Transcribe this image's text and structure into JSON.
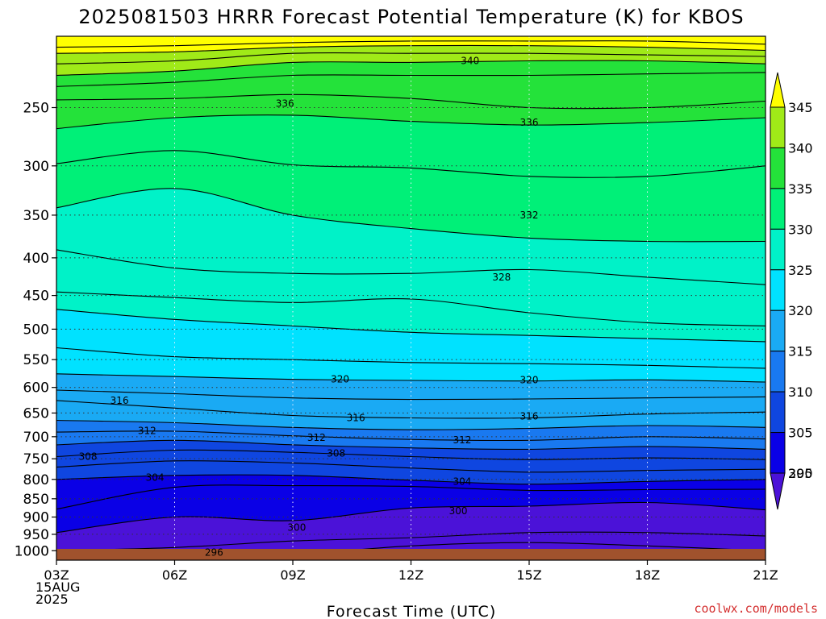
{
  "chart_data": {
    "type": "contour",
    "title": "2025081503 HRRR Forecast Potential Temperature (K) for KBOS",
    "xlabel": "Forecast Time (UTC)",
    "ylabel": "",
    "credit": "coolwx.com/models",
    "x_ticks": [
      {
        "hour": 0,
        "lines": [
          "03Z",
          "15AUG",
          "2025"
        ]
      },
      {
        "hour": 3,
        "lines": [
          "06Z"
        ]
      },
      {
        "hour": 6,
        "lines": [
          "09Z"
        ]
      },
      {
        "hour": 9,
        "lines": [
          "12Z"
        ]
      },
      {
        "hour": 12,
        "lines": [
          "15Z"
        ]
      },
      {
        "hour": 15,
        "lines": [
          "18Z"
        ]
      },
      {
        "hour": 18,
        "lines": [
          "21Z"
        ]
      }
    ],
    "xlim": [
      0,
      18
    ],
    "y_scale": "log-pressure",
    "y_ticks_hpa": [
      250,
      300,
      350,
      400,
      450,
      500,
      550,
      600,
      650,
      700,
      750,
      800,
      850,
      900,
      950,
      1000
    ],
    "ylim_hpa": [
      1030,
      200
    ],
    "colorbar": {
      "levels": [
        295,
        300,
        305,
        310,
        315,
        320,
        325,
        330,
        335,
        340,
        345
      ],
      "colors": [
        "#4b12d8",
        "#0a00e6",
        "#0f46e0",
        "#1979f0",
        "#1aaaf4",
        "#00e2ff",
        "#00f2c8",
        "#00f078",
        "#24e23a",
        "#a0ea18",
        "#ffff00"
      ],
      "extend": "both"
    },
    "contour_interval_K": 2,
    "contour_labels": [
      {
        "value": 340,
        "hour": 10.5,
        "hpa": 216
      },
      {
        "value": 336,
        "hour": 5.8,
        "hpa": 247
      },
      {
        "value": 336,
        "hour": 12.0,
        "hpa": 262
      },
      {
        "value": 332,
        "hour": 12.0,
        "hpa": 350
      },
      {
        "value": 328,
        "hour": 11.3,
        "hpa": 425
      },
      {
        "value": 320,
        "hour": 7.2,
        "hpa": 585
      },
      {
        "value": 320,
        "hour": 12.0,
        "hpa": 586
      },
      {
        "value": 316,
        "hour": 1.6,
        "hpa": 625
      },
      {
        "value": 316,
        "hour": 7.6,
        "hpa": 660
      },
      {
        "value": 316,
        "hour": 12.0,
        "hpa": 657
      },
      {
        "value": 312,
        "hour": 2.3,
        "hpa": 687
      },
      {
        "value": 312,
        "hour": 6.6,
        "hpa": 702
      },
      {
        "value": 312,
        "hour": 10.3,
        "hpa": 707
      },
      {
        "value": 308,
        "hour": 0.8,
        "hpa": 745
      },
      {
        "value": 308,
        "hour": 7.1,
        "hpa": 737
      },
      {
        "value": 304,
        "hour": 2.5,
        "hpa": 795
      },
      {
        "value": 304,
        "hour": 10.3,
        "hpa": 805
      },
      {
        "value": 300,
        "hour": 10.2,
        "hpa": 883
      },
      {
        "value": 300,
        "hour": 6.1,
        "hpa": 930
      },
      {
        "value": 296,
        "hour": 4.0,
        "hpa": 1005
      }
    ],
    "contours": [
      {
        "value": 346,
        "points": [
          [
            0,
            207
          ],
          [
            3,
            206
          ],
          [
            6,
            204
          ],
          [
            9,
            203
          ],
          [
            12,
            203
          ],
          [
            15,
            203
          ],
          [
            18,
            205
          ]
        ]
      },
      {
        "value": 344,
        "points": [
          [
            0,
            211
          ],
          [
            3,
            210
          ],
          [
            6,
            207
          ],
          [
            9,
            206
          ],
          [
            12,
            206
          ],
          [
            15,
            207
          ],
          [
            18,
            209
          ]
        ]
      },
      {
        "value": 342,
        "points": [
          [
            0,
            218
          ],
          [
            3,
            216
          ],
          [
            6,
            211
          ],
          [
            9,
            211
          ],
          [
            12,
            211
          ],
          [
            15,
            212
          ],
          [
            18,
            213
          ]
        ]
      },
      {
        "value": 340,
        "points": [
          [
            0,
            226
          ],
          [
            3,
            223
          ],
          [
            6,
            217
          ],
          [
            9,
            217
          ],
          [
            12,
            216
          ],
          [
            15,
            216
          ],
          [
            18,
            218
          ]
        ]
      },
      {
        "value": 338,
        "points": [
          [
            0,
            234
          ],
          [
            3,
            231
          ],
          [
            6,
            226
          ],
          [
            9,
            226
          ],
          [
            12,
            226
          ],
          [
            15,
            225
          ],
          [
            18,
            224
          ]
        ]
      },
      {
        "value": 336,
        "points": [
          [
            0,
            244
          ],
          [
            3,
            243
          ],
          [
            6,
            240
          ],
          [
            9,
            243
          ],
          [
            12,
            250
          ],
          [
            15,
            250
          ],
          [
            18,
            245
          ]
        ]
      },
      {
        "value": 334,
        "points": [
          [
            0,
            267
          ],
          [
            3,
            258
          ],
          [
            6,
            256
          ],
          [
            9,
            261
          ],
          [
            12,
            264
          ],
          [
            15,
            262
          ],
          [
            18,
            258
          ]
        ]
      },
      {
        "value": 332,
        "points": [
          [
            0,
            298
          ],
          [
            3,
            286
          ],
          [
            6,
            299
          ],
          [
            9,
            302
          ],
          [
            12,
            310
          ],
          [
            15,
            310
          ],
          [
            18,
            300
          ]
        ]
      },
      {
        "value": 330,
        "points": [
          [
            0,
            342
          ],
          [
            3,
            322
          ],
          [
            6,
            350
          ],
          [
            9,
            365
          ],
          [
            12,
            376
          ],
          [
            15,
            380
          ],
          [
            18,
            380
          ]
        ]
      },
      {
        "value": 328,
        "points": [
          [
            0,
            390
          ],
          [
            3,
            413
          ],
          [
            6,
            420
          ],
          [
            9,
            420
          ],
          [
            12,
            415
          ],
          [
            15,
            425
          ],
          [
            18,
            435
          ]
        ]
      },
      {
        "value": 326,
        "points": [
          [
            0,
            445
          ],
          [
            3,
            453
          ],
          [
            6,
            460
          ],
          [
            9,
            455
          ],
          [
            12,
            475
          ],
          [
            15,
            490
          ],
          [
            18,
            495
          ]
        ]
      },
      {
        "value": 324,
        "points": [
          [
            0,
            470
          ],
          [
            3,
            485
          ],
          [
            6,
            495
          ],
          [
            9,
            505
          ],
          [
            12,
            510
          ],
          [
            15,
            515
          ],
          [
            18,
            520
          ]
        ]
      },
      {
        "value": 322,
        "points": [
          [
            0,
            530
          ],
          [
            3,
            545
          ],
          [
            6,
            550
          ],
          [
            9,
            555
          ],
          [
            12,
            557
          ],
          [
            15,
            560
          ],
          [
            18,
            565
          ]
        ]
      },
      {
        "value": 320,
        "points": [
          [
            0,
            575
          ],
          [
            3,
            580
          ],
          [
            6,
            585
          ],
          [
            9,
            587
          ],
          [
            12,
            588
          ],
          [
            15,
            586
          ],
          [
            18,
            590
          ]
        ]
      },
      {
        "value": 318,
        "points": [
          [
            0,
            605
          ],
          [
            3,
            612
          ],
          [
            6,
            620
          ],
          [
            9,
            623
          ],
          [
            12,
            622
          ],
          [
            15,
            620
          ],
          [
            18,
            618
          ]
        ]
      },
      {
        "value": 316,
        "points": [
          [
            0,
            625
          ],
          [
            3,
            640
          ],
          [
            6,
            655
          ],
          [
            9,
            660
          ],
          [
            12,
            660
          ],
          [
            15,
            652
          ],
          [
            18,
            648
          ]
        ]
      },
      {
        "value": 314,
        "points": [
          [
            0,
            665
          ],
          [
            3,
            670
          ],
          [
            6,
            680
          ],
          [
            9,
            685
          ],
          [
            12,
            682
          ],
          [
            15,
            676
          ],
          [
            18,
            680
          ]
        ]
      },
      {
        "value": 312,
        "points": [
          [
            0,
            690
          ],
          [
            3,
            688
          ],
          [
            6,
            698
          ],
          [
            9,
            706
          ],
          [
            12,
            708
          ],
          [
            15,
            700
          ],
          [
            18,
            705
          ]
        ]
      },
      {
        "value": 310,
        "points": [
          [
            0,
            718
          ],
          [
            3,
            708
          ],
          [
            6,
            718
          ],
          [
            9,
            725
          ],
          [
            12,
            728
          ],
          [
            15,
            722
          ],
          [
            18,
            728
          ]
        ]
      },
      {
        "value": 308,
        "points": [
          [
            0,
            745
          ],
          [
            3,
            730
          ],
          [
            6,
            735
          ],
          [
            9,
            745
          ],
          [
            12,
            752
          ],
          [
            15,
            748
          ],
          [
            18,
            752
          ]
        ]
      },
      {
        "value": 306,
        "points": [
          [
            0,
            770
          ],
          [
            3,
            755
          ],
          [
            6,
            760
          ],
          [
            9,
            772
          ],
          [
            12,
            782
          ],
          [
            15,
            778
          ],
          [
            18,
            775
          ]
        ]
      },
      {
        "value": 304,
        "points": [
          [
            0,
            800
          ],
          [
            3,
            790
          ],
          [
            6,
            790
          ],
          [
            9,
            802
          ],
          [
            12,
            812
          ],
          [
            15,
            805
          ],
          [
            18,
            800
          ]
        ]
      },
      {
        "value": 302,
        "points": [
          [
            0,
            878
          ],
          [
            3,
            820
          ],
          [
            6,
            816
          ],
          [
            9,
            818
          ],
          [
            12,
            828
          ],
          [
            15,
            826
          ],
          [
            18,
            825
          ]
        ]
      },
      {
        "value": 300,
        "points": [
          [
            0,
            945
          ],
          [
            3,
            900
          ],
          [
            6,
            910
          ],
          [
            9,
            875
          ],
          [
            12,
            870
          ],
          [
            15,
            860
          ],
          [
            18,
            880
          ]
        ]
      },
      {
        "value": 298,
        "points": [
          [
            0,
            1000
          ],
          [
            3,
            990
          ],
          [
            6,
            970
          ],
          [
            9,
            960
          ],
          [
            12,
            945
          ],
          [
            15,
            945
          ],
          [
            18,
            955
          ]
        ]
      },
      {
        "value": 296,
        "points": [
          [
            0,
            1030
          ],
          [
            3,
            1020
          ],
          [
            6,
            1012
          ],
          [
            9,
            985
          ],
          [
            12,
            975
          ],
          [
            15,
            985
          ],
          [
            18,
            1000
          ]
        ]
      }
    ]
  }
}
